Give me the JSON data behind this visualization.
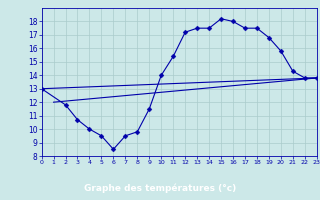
{
  "xlabel": "Graphe des températures (°c)",
  "bg_color": "#cce8e8",
  "line_color": "#0000aa",
  "xlabel_bg": "#2222aa",
  "xlabel_fg": "#ffffff",
  "grid_color": "#aacccc",
  "ylim": [
    8,
    19
  ],
  "xlim": [
    0,
    23
  ],
  "yticks": [
    8,
    9,
    10,
    11,
    12,
    13,
    14,
    15,
    16,
    17,
    18
  ],
  "xticks": [
    0,
    1,
    2,
    3,
    4,
    5,
    6,
    7,
    8,
    9,
    10,
    11,
    12,
    13,
    14,
    15,
    16,
    17,
    18,
    19,
    20,
    21,
    22,
    23
  ],
  "curve1_x": [
    0,
    2,
    3,
    4,
    5,
    6,
    7,
    8,
    9,
    10,
    11,
    12,
    13,
    14,
    15,
    16,
    17,
    18,
    19,
    20,
    21,
    22,
    23
  ],
  "curve1_y": [
    13.0,
    11.8,
    10.7,
    10.0,
    9.5,
    8.5,
    9.5,
    9.8,
    11.5,
    14.0,
    15.4,
    17.2,
    17.5,
    17.5,
    18.2,
    18.0,
    17.5,
    17.5,
    16.8,
    15.8,
    14.3,
    13.8,
    13.8
  ],
  "curve2_x": [
    0,
    23
  ],
  "curve2_y": [
    13.0,
    13.8
  ],
  "curve3_x": [
    1,
    23
  ],
  "curve3_y": [
    12.0,
    13.8
  ],
  "marker": "D",
  "markersize": 2.5
}
